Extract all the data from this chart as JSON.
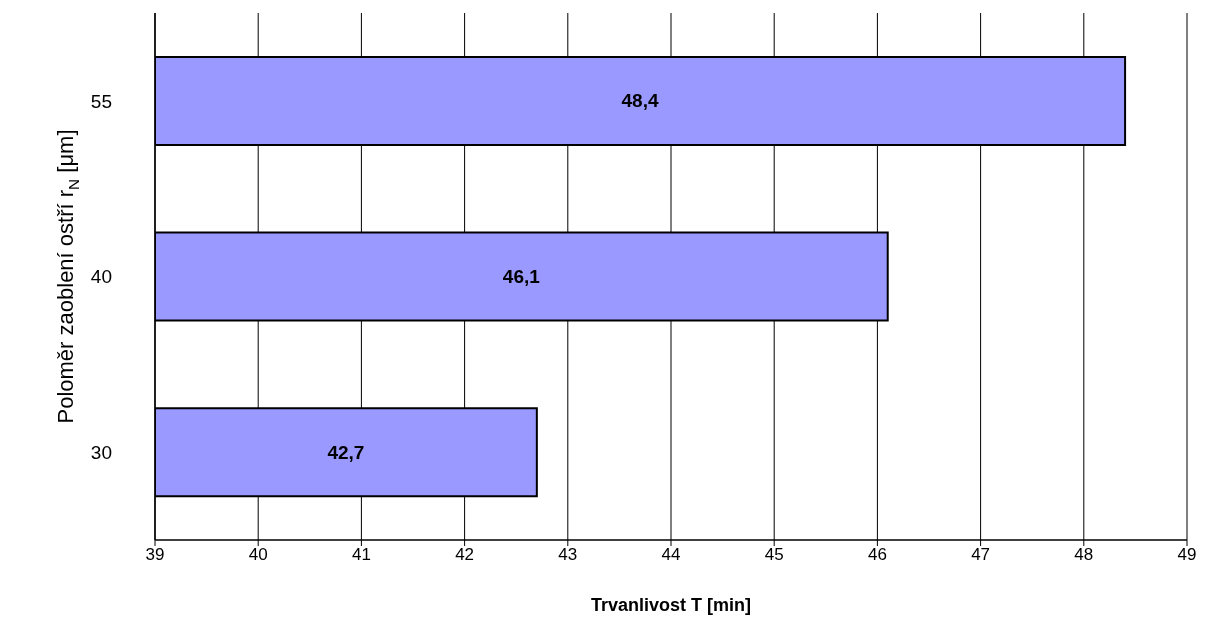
{
  "chart_data": {
    "type": "bar",
    "orientation": "horizontal",
    "categories": [
      "55",
      "40",
      "30"
    ],
    "values": [
      48.4,
      46.1,
      42.7
    ],
    "color": "#9999ff",
    "value_labels": [
      "48,4",
      "46,1",
      "42,7"
    ],
    "xlim": [
      39,
      49
    ],
    "xticks": [
      39,
      40,
      41,
      42,
      43,
      44,
      45,
      46,
      47,
      48,
      49
    ],
    "grid": "x",
    "xlabel": "Trvanlivost T [min]",
    "ylabel": "Poloměr zaoblení ostří r$_{N}$ [μm]"
  }
}
